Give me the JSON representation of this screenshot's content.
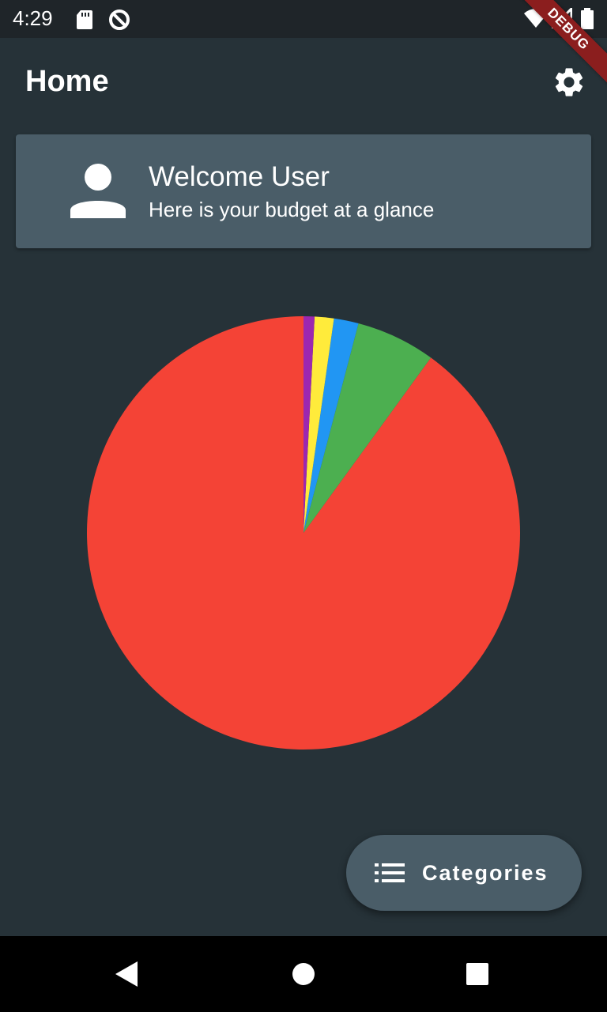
{
  "status_bar": {
    "time": "4:29"
  },
  "debug_banner": {
    "label": "DEBUG"
  },
  "app_bar": {
    "title": "Home",
    "settings_icon": "gear-icon"
  },
  "welcome_card": {
    "avatar_icon": "person-icon",
    "title": "Welcome User",
    "subtitle": "Here is your budget at a glance"
  },
  "chart_data": {
    "type": "pie",
    "values": [
      0.881,
      0.058,
      0.018,
      0.014,
      0.008
    ],
    "colors": [
      "#f44336",
      "#4caf50",
      "#2196f3",
      "#ffeb3b",
      "#9c27b0"
    ],
    "start_angle": "top",
    "direction": "counterclockwise"
  },
  "fab": {
    "icon": "list-icon",
    "label": "Categories"
  },
  "nav_bar": {
    "back_icon": "back-triangle-icon",
    "home_icon": "home-circle-icon",
    "recents_icon": "recents-square-icon"
  }
}
